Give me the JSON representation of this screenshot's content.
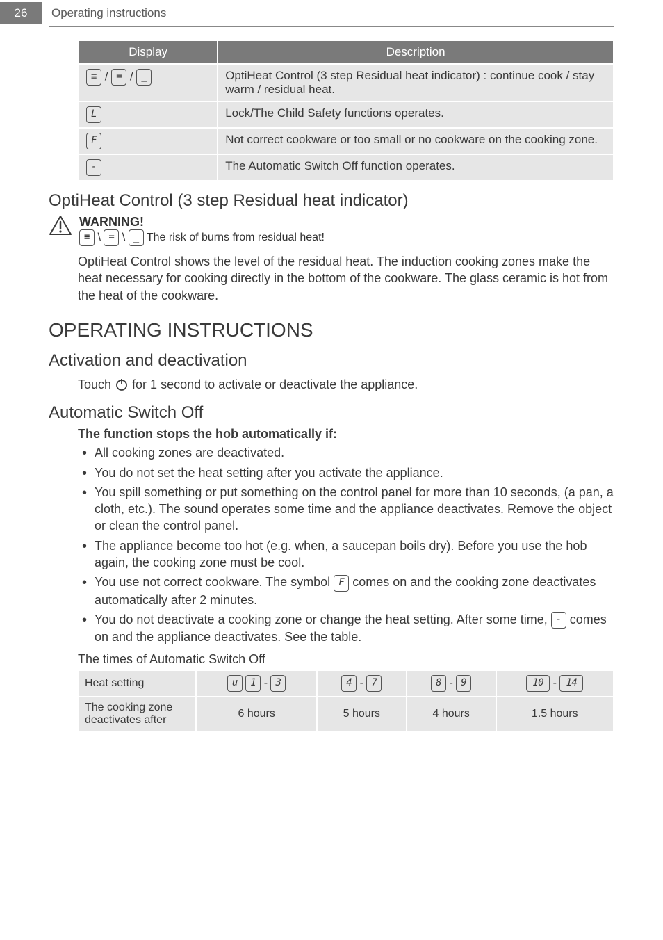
{
  "header": {
    "page_number": "26",
    "section_title": "Operating instructions"
  },
  "display_table": {
    "columns": [
      "Display",
      "Description"
    ],
    "rows": [
      {
        "icons": [
          "three-bar-icon",
          "two-bar-icon",
          "one-bar-icon"
        ],
        "sep": " / ",
        "desc": "OptiHeat Control (3 step Residual heat indicator) : continue cook / stay warm / residual heat."
      },
      {
        "icons": [
          "l-icon"
        ],
        "sep": "",
        "desc": "Lock/The Child Safety functions operates."
      },
      {
        "icons": [
          "f-icon"
        ],
        "sep": "",
        "desc": "Not correct cookware or too small or no cookware on the cooking zone."
      },
      {
        "icons": [
          "dash-icon"
        ],
        "sep": "",
        "desc": "The Automatic Switch Off function operates."
      }
    ]
  },
  "optiheat": {
    "heading": "OptiHeat Control (3 step Residual heat indicator)",
    "warning_title": "WARNING!",
    "warning_text": "The risk of burns from residual heat!",
    "paragraph": "OptiHeat Control shows the level of the residual heat. The induction cooking zones make the heat necessary for cooking directly in the bottom of the cookware. The glass ceramic is hot from the heat of the cookware."
  },
  "operating": {
    "heading": "OPERATING INSTRUCTIONS"
  },
  "activation": {
    "heading": "Activation and deactivation",
    "text_before": "Touch ",
    "text_after": " for 1 second to activate or deactivate the appliance."
  },
  "auto_off": {
    "heading": "Automatic Switch Off",
    "lead": "The function stops the hob automatically if:",
    "bullets": [
      {
        "text": "All cooking zones are deactivated."
      },
      {
        "text": "You do not set the heat setting after you activate the appliance."
      },
      {
        "text": "You spill something or put something on the control panel for more than 10 seconds, (a pan, a cloth, etc.). The sound operates some time and the appliance deactivates. Remove the object or clean the control panel."
      },
      {
        "text": "The appliance become too hot (e.g. when, a saucepan boils dry). Before you use the hob again, the cooking zone must be cool."
      },
      {
        "before": "You use not correct cookware. The symbol ",
        "icon": "f-icon",
        "after": " comes on and the cooking zone deactivates automatically after 2 minutes."
      },
      {
        "before": "You do not deactivate a cooking zone or change the heat setting. After some time, ",
        "icon": "dash-icon",
        "after": " comes on and the appliance deactivates. See the table."
      }
    ],
    "times_caption": "The times of Automatic Switch Off",
    "times_table": {
      "row_header": "Heat setting",
      "col_ranges": [
        {
          "from": "u",
          "sep_type": "triple",
          "to": "3"
        },
        {
          "from": "4",
          "sep_type": "dash",
          "to": "7"
        },
        {
          "from": "8",
          "sep_type": "dash",
          "to": "9"
        },
        {
          "from": "10",
          "sep_type": "dash",
          "to": "14"
        }
      ],
      "value_row_label": "The cooking zone deactivates after",
      "values": [
        "6 hours",
        "5 hours",
        "4 hours",
        "1.5 hours"
      ]
    }
  },
  "icon_glyphs": {
    "three-bar-icon": "≡",
    "two-bar-icon": "=",
    "one-bar-icon": "_",
    "l-icon": "L",
    "f-icon": "F",
    "dash-icon": "-",
    "u": "u",
    "1": "1",
    "3": "3",
    "4": "4",
    "7": "7",
    "8": "8",
    "9": "9",
    "10": "10",
    "14": "14"
  },
  "colors": {
    "header_gray": "#7a7a7a",
    "cell_gray": "#e6e6e6",
    "text": "#3a3a3a"
  }
}
